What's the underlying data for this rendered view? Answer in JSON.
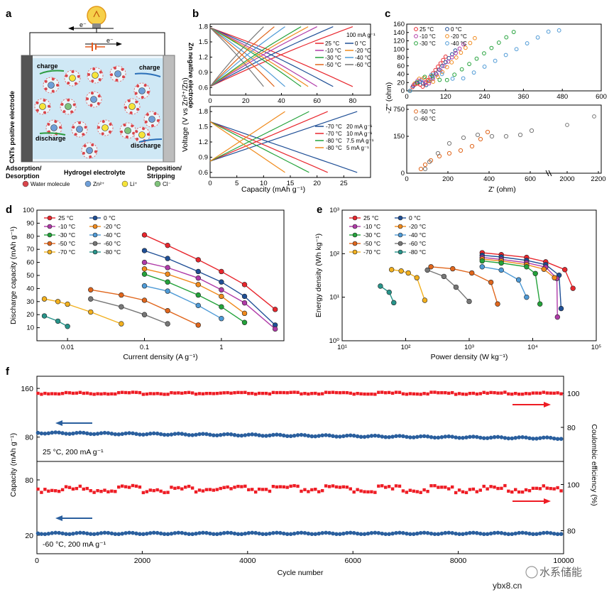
{
  "panel_labels": {
    "a": "a",
    "b": "b",
    "c": "c",
    "d": "d",
    "e": "e",
    "f": "f"
  },
  "panel_a": {
    "left_electrode": "CNTs positive electrode",
    "right_electrode": "Zn negative electrode",
    "electron_top": "e⁻",
    "electron_bottom": "e⁻",
    "charge_left": "charge",
    "charge_right": "charge",
    "discharge_left": "discharge",
    "discharge_right": "discharge",
    "bottom_left": "Adsorption/\nDesorption",
    "bottom_center": "Hydrogel electrolyte",
    "bottom_right": "Deposition/\nStripping",
    "legend": [
      {
        "label": "Water molecule",
        "icon": "water-molecule-icon"
      },
      {
        "label": "Zn²⁺",
        "icon": "zinc-ion-icon",
        "symbol": "+"
      },
      {
        "label": "Li⁺",
        "icon": "lithium-ion-icon",
        "symbol": "+"
      },
      {
        "label": "Cl⁻",
        "icon": "chloride-ion-icon",
        "symbol": "−"
      }
    ],
    "colors": {
      "electrode": "#555555",
      "bath": "#cfe8f5",
      "zn": "#6f9fd8",
      "li": "#f6e43a",
      "cl": "#7fc27a",
      "water": "#d9454b"
    }
  },
  "panel_b": {
    "ylabel": "Voltage (V vs Zn²⁺/Zn)",
    "xlabel": "Capacity (mAh g⁻¹)",
    "top": {
      "annotation": "100 mA g⁻¹",
      "xlim": [
        0,
        90
      ],
      "ylim": [
        0.45,
        1.85
      ],
      "xticks": [
        0,
        20,
        40,
        60,
        80
      ],
      "yticks": [
        0.6,
        0.9,
        1.2,
        1.5,
        1.8
      ],
      "series": [
        {
          "name": "25 °C",
          "capacity": 80,
          "color": "#e8262d"
        },
        {
          "name": "0 °C",
          "capacity": 69,
          "color": "#1f4f96"
        },
        {
          "name": "-10 °C",
          "capacity": 60,
          "color": "#b03aa8"
        },
        {
          "name": "-20 °C",
          "capacity": 55,
          "color": "#f08a1c"
        },
        {
          "name": "-30 °C",
          "capacity": 51,
          "color": "#23a23a"
        },
        {
          "name": "-40 °C",
          "capacity": 42,
          "color": "#4e9ad6"
        },
        {
          "name": "-50 °C",
          "capacity": 36,
          "color": "#e0661c"
        },
        {
          "name": "-60 °C",
          "capacity": 30,
          "color": "#777777"
        }
      ]
    },
    "bottom": {
      "xlim": [
        0,
        30
      ],
      "ylim": [
        0.5,
        1.9
      ],
      "xticks": [
        0,
        5,
        10,
        15,
        20,
        25
      ],
      "yticks": [
        0.6,
        0.9,
        1.2,
        1.5,
        1.8
      ],
      "series": [
        {
          "name": "-70 °C",
          "rate": "20 mA g⁻¹",
          "capacity": 27.5,
          "color": "#1f4f96"
        },
        {
          "name": "-70 °C",
          "rate": "10 mA g⁻¹",
          "capacity": 22,
          "color": "#e8262d"
        },
        {
          "name": "-80 °C",
          "rate": "7.5 mA g⁻¹",
          "capacity": 18.5,
          "color": "#23a23a"
        },
        {
          "name": "-80 °C",
          "rate": "5 mA g⁻¹",
          "capacity": 14,
          "color": "#f08a1c"
        }
      ]
    }
  },
  "panel_c": {
    "ylabel": "-Z'' (ohm)",
    "xlabel": "Z' (ohm)",
    "top": {
      "xticks": [
        "0",
        "120",
        "240",
        "360",
        "480",
        "600"
      ],
      "yticks": [
        "0",
        "20",
        "40",
        "60",
        "80",
        "100",
        "120",
        "140",
        "160"
      ],
      "series": [
        {
          "name": "25 °C",
          "color": "#e8262d"
        },
        {
          "name": "0 °C",
          "color": "#1f4f96"
        },
        {
          "name": "-10 °C",
          "color": "#b03aa8"
        },
        {
          "name": "-20 °C",
          "color": "#f08a1c"
        },
        {
          "name": "-30 °C",
          "color": "#23a23a"
        },
        {
          "name": "-40 °C",
          "color": "#4e9ad6"
        }
      ]
    },
    "bottom": {
      "xticks": [
        "0",
        "200",
        "400",
        "600",
        "2000",
        "2200"
      ],
      "yticks": [
        "0",
        "150",
        "750"
      ],
      "series": [
        {
          "name": "-50 °C",
          "color": "#e0661c"
        },
        {
          "name": "-60 °C",
          "color": "#777777"
        }
      ]
    }
  },
  "chart_data": [
    {
      "type": "line",
      "title": "d",
      "xlabel": "Current density (A g⁻¹)",
      "ylabel": "Discharge capacity (mAh g⁻¹)",
      "xscale": "log",
      "xlim": [
        0.004,
        6.5
      ],
      "ylim": [
        0,
        100
      ],
      "xticks": [
        0.01,
        0.1,
        1
      ],
      "xticklabels": [
        "0.01",
        "0.1",
        "1"
      ],
      "yticks": [
        10,
        20,
        30,
        40,
        50,
        60,
        70,
        80,
        90,
        100
      ],
      "legend_location": "top-left",
      "series": [
        {
          "name": "25 °C",
          "color": "#e8262d",
          "x": [
            0.1,
            0.2,
            0.5,
            1,
            2,
            5
          ],
          "y": [
            81,
            73,
            62,
            53,
            43,
            24
          ]
        },
        {
          "name": "0 °C",
          "color": "#1f4f96",
          "x": [
            0.1,
            0.2,
            0.5,
            1,
            2,
            5
          ],
          "y": [
            69,
            63,
            53,
            45,
            34,
            12
          ]
        },
        {
          "name": "-10 °C",
          "color": "#b03aa8",
          "x": [
            0.1,
            0.2,
            0.5,
            1,
            2,
            5
          ],
          "y": [
            60,
            56,
            48,
            39,
            29,
            9
          ]
        },
        {
          "name": "-20 °C",
          "color": "#f08a1c",
          "x": [
            0.1,
            0.2,
            0.5,
            1,
            2
          ],
          "y": [
            55,
            51,
            43,
            34,
            21
          ]
        },
        {
          "name": "-30 °C",
          "color": "#23a23a",
          "x": [
            0.1,
            0.2,
            0.5,
            1,
            2
          ],
          "y": [
            51,
            45,
            35,
            26,
            14
          ]
        },
        {
          "name": "-40 °C",
          "color": "#4e9ad6",
          "x": [
            0.1,
            0.2,
            0.5,
            1
          ],
          "y": [
            42,
            38,
            27,
            17
          ]
        },
        {
          "name": "-50 °C",
          "color": "#e0661c",
          "x": [
            0.02,
            0.05,
            0.1,
            0.2,
            0.5
          ],
          "y": [
            39,
            35,
            31,
            23,
            12
          ]
        },
        {
          "name": "-60 °C",
          "color": "#777777",
          "x": [
            0.02,
            0.05,
            0.1,
            0.2
          ],
          "y": [
            32,
            26,
            20,
            13
          ]
        },
        {
          "name": "-70 °C",
          "color": "#f2b01e",
          "x": [
            0.005,
            0.0075,
            0.01,
            0.02,
            0.05
          ],
          "y": [
            32,
            30,
            28,
            22,
            13
          ]
        },
        {
          "name": "-80 °C",
          "color": "#27948a",
          "x": [
            0.005,
            0.0075,
            0.01
          ],
          "y": [
            19,
            15,
            11
          ]
        }
      ]
    },
    {
      "type": "line",
      "title": "e",
      "xlabel": "Power density (W kg⁻¹)",
      "ylabel": "Energy density (Wh kg⁻¹)",
      "xscale": "log",
      "yscale": "log",
      "xlim": [
        10,
        100000
      ],
      "ylim": [
        1,
        1000
      ],
      "xticks": [
        10,
        100,
        1000,
        10000,
        100000
      ],
      "xticklabels": [
        "10¹",
        "10²",
        "10³",
        "10⁴",
        "10⁵"
      ],
      "yticks": [
        1,
        10,
        100,
        1000
      ],
      "yticklabels": [
        "10⁰",
        "10¹",
        "10²",
        "10³"
      ],
      "legend_location": "top-left",
      "series": [
        {
          "name": "25 °C",
          "color": "#e8262d",
          "x": [
            1600,
            3200,
            8000,
            16000,
            32000,
            43000
          ],
          "y": [
            105,
            95,
            82,
            65,
            43,
            16
          ]
        },
        {
          "name": "0 °C",
          "color": "#1f4f96",
          "x": [
            1600,
            3200,
            8000,
            16000,
            26000,
            28000
          ],
          "y": [
            92,
            84,
            70,
            56,
            32,
            5.5
          ]
        },
        {
          "name": "-10 °C",
          "color": "#b03aa8",
          "x": [
            1600,
            3200,
            8000,
            16000,
            24000,
            24500
          ],
          "y": [
            82,
            74,
            62,
            49,
            27,
            3.5
          ]
        },
        {
          "name": "-20 °C",
          "color": "#f08a1c",
          "x": [
            1600,
            3200,
            8000,
            15000,
            22000
          ],
          "y": [
            75,
            68,
            56,
            44,
            28
          ]
        },
        {
          "name": "-30 °C",
          "color": "#23a23a",
          "x": [
            1600,
            3200,
            8000,
            11000,
            13000
          ],
          "y": [
            68,
            61,
            50,
            35,
            7
          ]
        },
        {
          "name": "-40 °C",
          "color": "#4e9ad6",
          "x": [
            1600,
            3200,
            6000,
            8000
          ],
          "y": [
            50,
            42,
            25,
            10
          ]
        },
        {
          "name": "-50 °C",
          "color": "#e0661c",
          "x": [
            250,
            550,
            1100,
            2200,
            2800
          ],
          "y": [
            50,
            45,
            36,
            22,
            7
          ]
        },
        {
          "name": "-60 °C",
          "color": "#777777",
          "x": [
            220,
            400,
            620,
            1000
          ],
          "y": [
            42,
            30,
            17,
            8
          ]
        },
        {
          "name": "-70 °C",
          "color": "#f2b01e",
          "x": [
            60,
            85,
            110,
            150,
            200
          ],
          "y": [
            43,
            40,
            36,
            28,
            8.5
          ]
        },
        {
          "name": "-80 °C",
          "color": "#27948a",
          "x": [
            40,
            55,
            65
          ],
          "y": [
            18,
            13,
            7.5
          ]
        }
      ]
    },
    {
      "type": "scatter",
      "title": "f",
      "xlabel": "Cycle number",
      "ylabel": "Capacity (mAh g⁻¹)",
      "ylabel_right": "Coulombic efficiency (%)",
      "xlim": [
        0,
        10000
      ],
      "xticks": [
        0,
        2000,
        4000,
        6000,
        8000,
        10000
      ],
      "top": {
        "annotation": "25 °C, 200 mA g⁻¹",
        "yticks_left": [
          80,
          160
        ],
        "yticks_right": [
          80,
          100
        ],
        "capacity": {
          "start": 87,
          "end": 78,
          "color": "#2a5f9e"
        },
        "coulombic_efficiency": {
          "value": 100,
          "color": "#ee1c24"
        }
      },
      "bottom": {
        "annotation": "-60 °C, 200 mA g⁻¹",
        "yticks_left": [
          20,
          80
        ],
        "yticks_right": [
          80,
          100
        ],
        "capacity": {
          "start": 22,
          "end": 22,
          "color": "#2a5f9e"
        },
        "coulombic_efficiency": {
          "value": 98,
          "color": "#ee1c24"
        }
      }
    }
  ],
  "watermark": {
    "text": "水系储能",
    "site": "ybx8.cn"
  }
}
